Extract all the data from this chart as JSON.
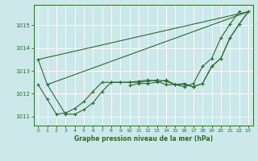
{
  "title": "Graphe pression niveau de la mer (hPa)",
  "bg_color": "#cce8ea",
  "grid_color": "#ffffff",
  "line_color": "#2d6a2d",
  "xlim": [
    -0.5,
    23.5
  ],
  "ylim": [
    1010.6,
    1015.9
  ],
  "yticks": [
    1011,
    1012,
    1013,
    1014,
    1015
  ],
  "xticks": [
    0,
    1,
    2,
    3,
    4,
    5,
    6,
    7,
    8,
    9,
    10,
    11,
    12,
    13,
    14,
    15,
    16,
    17,
    18,
    19,
    20,
    21,
    22,
    23
  ],
  "series_with_markers": [
    [
      1013.5,
      1012.4,
      null,
      1011.1,
      1011.1,
      1011.3,
      1011.6,
      1012.1,
      1012.5,
      1012.5,
      1012.5,
      1012.5,
      1012.55,
      1012.6,
      1012.55,
      1012.4,
      1012.4,
      1012.3,
      1012.45,
      1013.2,
      1013.55,
      1014.45,
      1015.05,
      1015.6
    ],
    [
      1012.4,
      1011.75,
      1011.1,
      1011.15,
      1011.35,
      1011.65,
      1012.1,
      1012.5,
      1012.5,
      1012.5,
      1012.5,
      1012.55,
      1012.6,
      1012.55,
      1012.4,
      1012.4,
      1012.3,
      1012.45,
      1013.2,
      1013.55,
      1014.45,
      1015.05,
      1015.6,
      null
    ],
    [
      null,
      null,
      null,
      null,
      null,
      null,
      null,
      null,
      null,
      null,
      1012.35,
      1012.45,
      1012.45,
      1012.5,
      1012.6,
      1012.4,
      1012.45,
      1012.3,
      1012.45,
      1013.2,
      1013.55,
      1014.45,
      1015.05,
      1015.6
    ]
  ],
  "series_straight": [
    [
      0,
      1013.5
    ],
    [
      23,
      1015.6
    ]
  ],
  "series_straight2": [
    [
      1,
      1012.4
    ],
    [
      23,
      1015.6
    ]
  ]
}
